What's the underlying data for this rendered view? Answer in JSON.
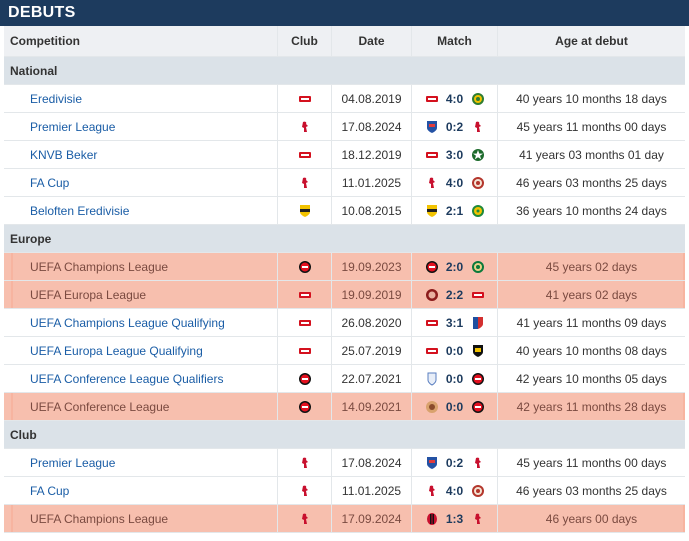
{
  "header": {
    "title": "DEBUTS"
  },
  "columns": {
    "competition": "Competition",
    "club": "Club",
    "date": "Date",
    "match": "Match",
    "age": "Age at debut"
  },
  "colors": {
    "header_bg": "#1d3b5e",
    "section_bg": "#dbe2e8",
    "highlight_bg": "#f7bfae",
    "link": "#1a5da6"
  },
  "sections": [
    {
      "label": "National",
      "rows": [
        {
          "competition": "Eredivisie",
          "club_icon": "az-crest",
          "date": "04.08.2019",
          "home_icon": "az-crest",
          "score": "4:0",
          "away_icon": "fortuna-crest",
          "age": "40 years 10 months 18 days",
          "highlighted": false
        },
        {
          "competition": "Premier League",
          "club_icon": "liverpool-crest",
          "date": "17.08.2024",
          "home_icon": "ipswich-crest",
          "score": "0:2",
          "away_icon": "liverpool-crest",
          "age": "45 years 11 months 00 days",
          "highlighted": false
        },
        {
          "competition": "KNVB Beker",
          "club_icon": "az-crest",
          "date": "18.12.2019",
          "home_icon": "az-crest",
          "score": "3:0",
          "away_icon": "star-crest",
          "age": "41 years 03 months 01 day",
          "highlighted": false
        },
        {
          "competition": "FA Cup",
          "club_icon": "liverpool-crest",
          "date": "11.01.2025",
          "home_icon": "liverpool-crest",
          "score": "4:0",
          "away_icon": "accrington-crest",
          "age": "46 years 03 months 25 days",
          "highlighted": false
        },
        {
          "competition": "Beloften Eredivisie",
          "club_icon": "venlo-crest",
          "date": "10.08.2015",
          "home_icon": "venlo-crest",
          "score": "2:1",
          "away_icon": "ado-crest",
          "age": "36 years 10 months 24 days",
          "highlighted": false
        }
      ]
    },
    {
      "label": "Europe",
      "rows": [
        {
          "competition": "UEFA Champions League",
          "club_icon": "feyenoord-crest",
          "date": "19.09.2023",
          "home_icon": "feyenoord-crest",
          "score": "2:0",
          "away_icon": "celtic-crest",
          "age": "45 years 02 days",
          "highlighted": true
        },
        {
          "competition": "UEFA Europa League",
          "club_icon": "az-crest",
          "date": "19.09.2019",
          "home_icon": "partizan-crest",
          "score": "2:2",
          "away_icon": "az-crest",
          "age": "41 years 02 days",
          "highlighted": true
        },
        {
          "competition": "UEFA Champions League Qualifying",
          "club_icon": "az-crest",
          "date": "26.08.2020",
          "home_icon": "az-crest",
          "score": "3:1",
          "away_icon": "viktoria-crest",
          "age": "41 years 11 months 09 days",
          "highlighted": false
        },
        {
          "competition": "UEFA Europa League Qualifying",
          "club_icon": "az-crest",
          "date": "25.07.2019",
          "home_icon": "az-crest",
          "score": "0:0",
          "away_icon": "hacken-crest",
          "age": "40 years 10 months 08 days",
          "highlighted": false
        },
        {
          "competition": "UEFA Conference League Qualifiers",
          "club_icon": "feyenoord-crest",
          "date": "22.07.2021",
          "home_icon": "drita-crest",
          "score": "0:0",
          "away_icon": "feyenoord-crest",
          "age": "42 years 10 months 05 days",
          "highlighted": false
        },
        {
          "competition": "UEFA Conference League",
          "club_icon": "feyenoord-crest",
          "date": "14.09.2021",
          "home_icon": "maccabi-crest",
          "score": "0:0",
          "away_icon": "feyenoord-crest",
          "age": "42 years 11 months 28 days",
          "highlighted": true
        }
      ]
    },
    {
      "label": "Club",
      "rows": [
        {
          "competition": "Premier League",
          "club_icon": "liverpool-crest",
          "date": "17.08.2024",
          "home_icon": "ipswich-crest",
          "score": "0:2",
          "away_icon": "liverpool-crest",
          "age": "45 years 11 months 00 days",
          "highlighted": false
        },
        {
          "competition": "FA Cup",
          "club_icon": "liverpool-crest",
          "date": "11.01.2025",
          "home_icon": "liverpool-crest",
          "score": "4:0",
          "away_icon": "accrington-crest",
          "age": "46 years 03 months 25 days",
          "highlighted": false
        },
        {
          "competition": "UEFA Champions League",
          "club_icon": "liverpool-crest",
          "date": "17.09.2024",
          "home_icon": "milan-crest",
          "score": "1:3",
          "away_icon": "liverpool-crest",
          "age": "46 years 00 days",
          "highlighted": true
        }
      ]
    }
  ]
}
